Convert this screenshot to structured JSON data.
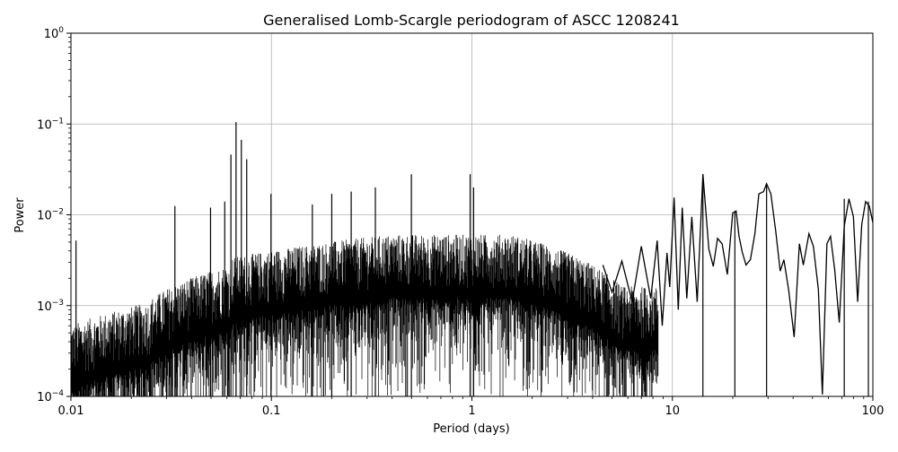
{
  "chart_data": {
    "type": "line",
    "title": "Generalised Lomb-Scargle periodogram of ASCC 1208241",
    "xlabel": "Period (days)",
    "ylabel": "Power",
    "xscale": "log",
    "yscale": "log",
    "xlim": [
      0.01,
      100
    ],
    "ylim": [
      0.0001,
      1
    ],
    "grid": true,
    "x_ticks": [
      {
        "value": 0.01,
        "label": "0.01"
      },
      {
        "value": 0.1,
        "label": "0.1"
      },
      {
        "value": 1,
        "label": "1"
      },
      {
        "value": 10,
        "label": "10"
      },
      {
        "value": 100,
        "label": "100"
      }
    ],
    "y_ticks": [
      {
        "value": 0.0001,
        "base": "10",
        "exp": "−4"
      },
      {
        "value": 0.001,
        "base": "10",
        "exp": "−3"
      },
      {
        "value": 0.01,
        "base": "10",
        "exp": "−2"
      },
      {
        "value": 0.1,
        "base": "10",
        "exp": "−1"
      },
      {
        "value": 1,
        "base": "10",
        "exp": "0"
      }
    ],
    "line_color": "#000000",
    "peaks": [
      {
        "period": 0.0106,
        "power": 0.0052
      },
      {
        "period": 0.033,
        "power": 0.0125
      },
      {
        "period": 0.0497,
        "power": 0.012
      },
      {
        "period": 0.0585,
        "power": 0.014
      },
      {
        "period": 0.0628,
        "power": 0.046
      },
      {
        "period": 0.0666,
        "power": 0.105
      },
      {
        "period": 0.0708,
        "power": 0.067
      },
      {
        "period": 0.0753,
        "power": 0.041
      },
      {
        "period": 0.0995,
        "power": 0.017
      },
      {
        "period": 0.16,
        "power": 0.013
      },
      {
        "period": 0.2,
        "power": 0.017
      },
      {
        "period": 0.25,
        "power": 0.018
      },
      {
        "period": 0.33,
        "power": 0.02
      },
      {
        "period": 0.499,
        "power": 0.028
      },
      {
        "period": 0.98,
        "power": 0.028
      },
      {
        "period": 1.02,
        "power": 0.02
      },
      {
        "period": 14.2,
        "power": 0.028
      },
      {
        "period": 20.5,
        "power": 0.011
      },
      {
        "period": 29.5,
        "power": 0.022
      },
      {
        "period": 72.0,
        "power": 0.015
      },
      {
        "period": 95.0,
        "power": 0.014
      }
    ],
    "series": [
      {
        "x": [
          4.5,
          5.0,
          5.6,
          6.3,
          7.0,
          7.8,
          8.4,
          8.9,
          9.4,
          9.7,
          10.2,
          10.7,
          11.2,
          11.8,
          12.5,
          13.3,
          14.2,
          15.2,
          16.0,
          16.8,
          17.7,
          18.8,
          20.0,
          20.8,
          21.5,
          22.3,
          23.3,
          24.5,
          25.8,
          27.0,
          28.5,
          29.5,
          31.0,
          32.8,
          34.5,
          36.0,
          38.0,
          40.5,
          43.0,
          45.0,
          48.0,
          50.5,
          53.5,
          56.0,
          59.0,
          61.5,
          64.5,
          68.0,
          72.0,
          76.0,
          80.0,
          84.0,
          88.0,
          92.0,
          96.0,
          100.0
        ],
        "y": [
          0.0028,
          0.0014,
          0.0031,
          0.0011,
          0.0045,
          0.0012,
          0.0052,
          0.0006,
          0.0038,
          0.0016,
          0.0155,
          0.0009,
          0.012,
          0.0012,
          0.0095,
          0.0011,
          0.028,
          0.0042,
          0.0027,
          0.0055,
          0.0048,
          0.0022,
          0.0105,
          0.011,
          0.0058,
          0.0039,
          0.0028,
          0.0032,
          0.0062,
          0.017,
          0.018,
          0.022,
          0.017,
          0.0065,
          0.0024,
          0.0032,
          0.0015,
          0.00045,
          0.0048,
          0.0028,
          0.0062,
          0.0045,
          0.0015,
          0.000105,
          0.0048,
          0.0058,
          0.0025,
          0.00065,
          0.0075,
          0.015,
          0.0095,
          0.0011,
          0.0078,
          0.014,
          0.0125,
          0.0082
        ]
      }
    ]
  }
}
